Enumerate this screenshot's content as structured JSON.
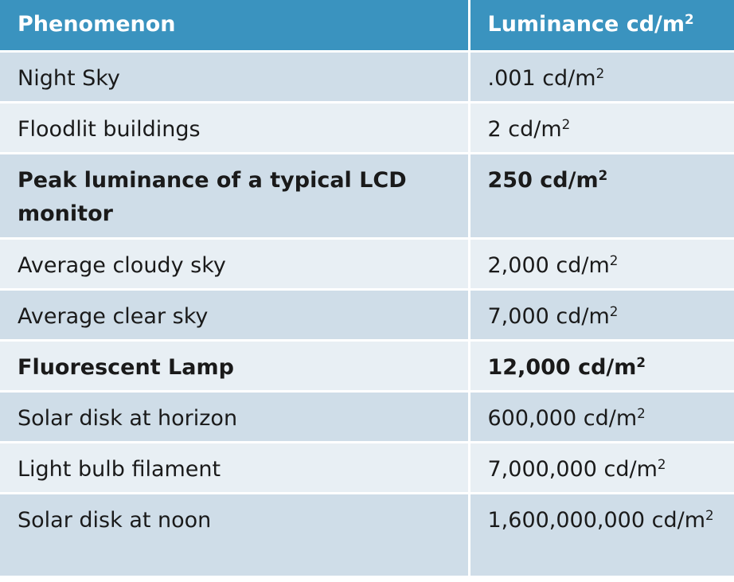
{
  "table": {
    "headers": {
      "phenomenon": "Phenomenon",
      "luminance": "Luminance cd/m",
      "luminance_sup": "2"
    },
    "rows": [
      {
        "phenomenon": "Night Sky",
        "value": ".001 cd/m",
        "sup": "2",
        "bold": false
      },
      {
        "phenomenon": "Floodlit buildings",
        "value": "2 cd/m",
        "sup": "2",
        "bold": false
      },
      {
        "phenomenon": "Peak luminance of a typical LCD monitor",
        "value": "250 cd/m",
        "sup": "2",
        "bold": true
      },
      {
        "phenomenon": "Average cloudy sky",
        "value": "2,000 cd/m",
        "sup": "2",
        "bold": false
      },
      {
        "phenomenon": "Average clear sky",
        "value": "7,000 cd/m",
        "sup": "2",
        "bold": false
      },
      {
        "phenomenon": "Fluorescent Lamp",
        "value": "12,000 cd/m",
        "sup": "2",
        "bold": true
      },
      {
        "phenomenon": "Solar disk at horizon",
        "value": "600,000 cd/m",
        "sup": "2",
        "bold": false
      },
      {
        "phenomenon": "Light bulb filament",
        "value": "7,000,000 cd/m",
        "sup": "2",
        "bold": false
      },
      {
        "phenomenon": "Solar disk at noon",
        "value": "1,600,000,000 cd/m",
        "sup": "2",
        "bold": false
      }
    ]
  },
  "colors": {
    "header_bg": "#3a93bf",
    "row_dark": "#cfdde8",
    "row_light": "#e8eff4",
    "text": "#1a1a1a"
  }
}
